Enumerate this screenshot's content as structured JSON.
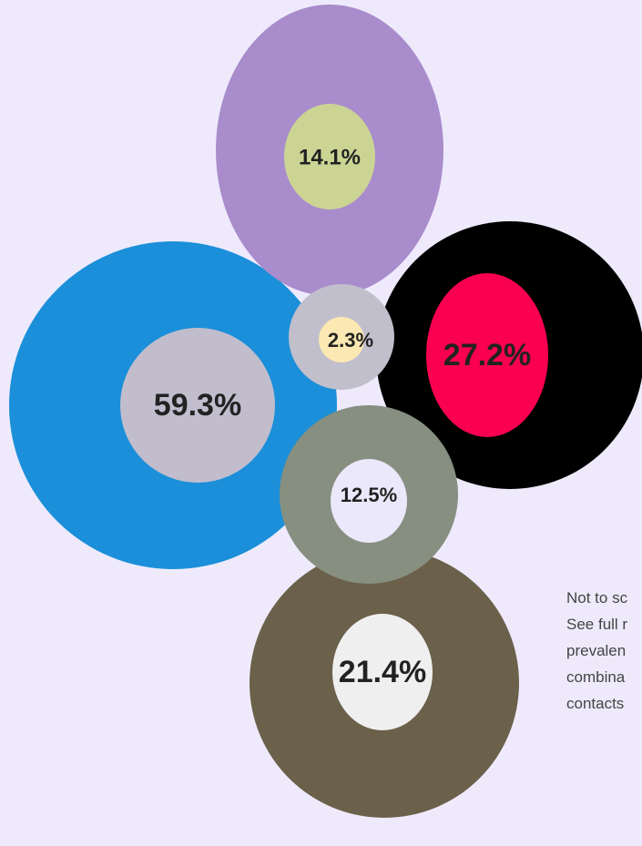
{
  "circles": [
    {
      "label": "59.3%"
    },
    {
      "label": "27.2%"
    },
    {
      "label": "14.1%"
    },
    {
      "label": "2.3%"
    },
    {
      "label": "12.5%"
    },
    {
      "label": "21.4%"
    }
  ],
  "note": [
    "Not to sc",
    "See full r",
    "prevalen",
    "combina",
    "contacts"
  ]
}
